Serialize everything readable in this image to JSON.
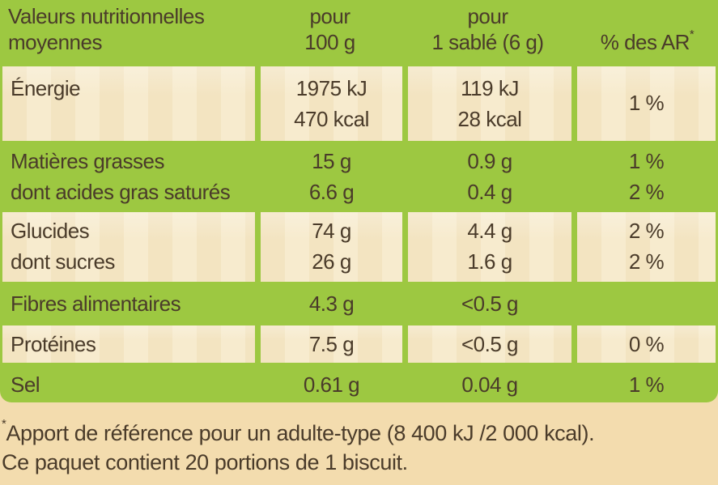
{
  "header": {
    "col1_line1": "Valeurs nutritionnelles",
    "col1_line2": "moyennes",
    "col2_line1": "pour",
    "col2_line2": "100 g",
    "col3_line1": "pour",
    "col3_line2": "1 sablé (6 g)",
    "col4": "% des AR",
    "col4_mark": "*"
  },
  "rows": [
    {
      "label1": "Énergie",
      "label2": "",
      "per100_1": "1975 kJ",
      "per100_2": "470 kcal",
      "portion_1": "119 kJ",
      "portion_2": "28 kcal",
      "ar_1": "1 %",
      "ar_2": ""
    },
    {
      "label1": "Matières grasses",
      "label2": "dont acides gras saturés",
      "per100_1": "15 g",
      "per100_2": "6.6 g",
      "portion_1": "0.9 g",
      "portion_2": "0.4 g",
      "ar_1": "1 %",
      "ar_2": "2 %"
    },
    {
      "label1": "Glucides",
      "label2": "dont sucres",
      "per100_1": "74 g",
      "per100_2": "26 g",
      "portion_1": "4.4 g",
      "portion_2": "1.6 g",
      "ar_1": "2 %",
      "ar_2": "2 %"
    },
    {
      "label1": "Fibres alimentaires",
      "per100_1": "4.3 g",
      "portion_1": "<0.5 g",
      "ar_1": ""
    },
    {
      "label1": "Protéines",
      "per100_1": "7.5 g",
      "portion_1": "<0.5 g",
      "ar_1": "0 %"
    },
    {
      "label1": "Sel",
      "per100_1": "0.61 g",
      "portion_1": "0.04 g",
      "ar_1": "1 %"
    }
  ],
  "footer": {
    "line1_mark": "*",
    "line1": "Apport de référence pour un adulte-type (8 400 kJ /2 000 kcal).",
    "line2": "Ce paquet contient 20 portions de 1 biscuit."
  }
}
